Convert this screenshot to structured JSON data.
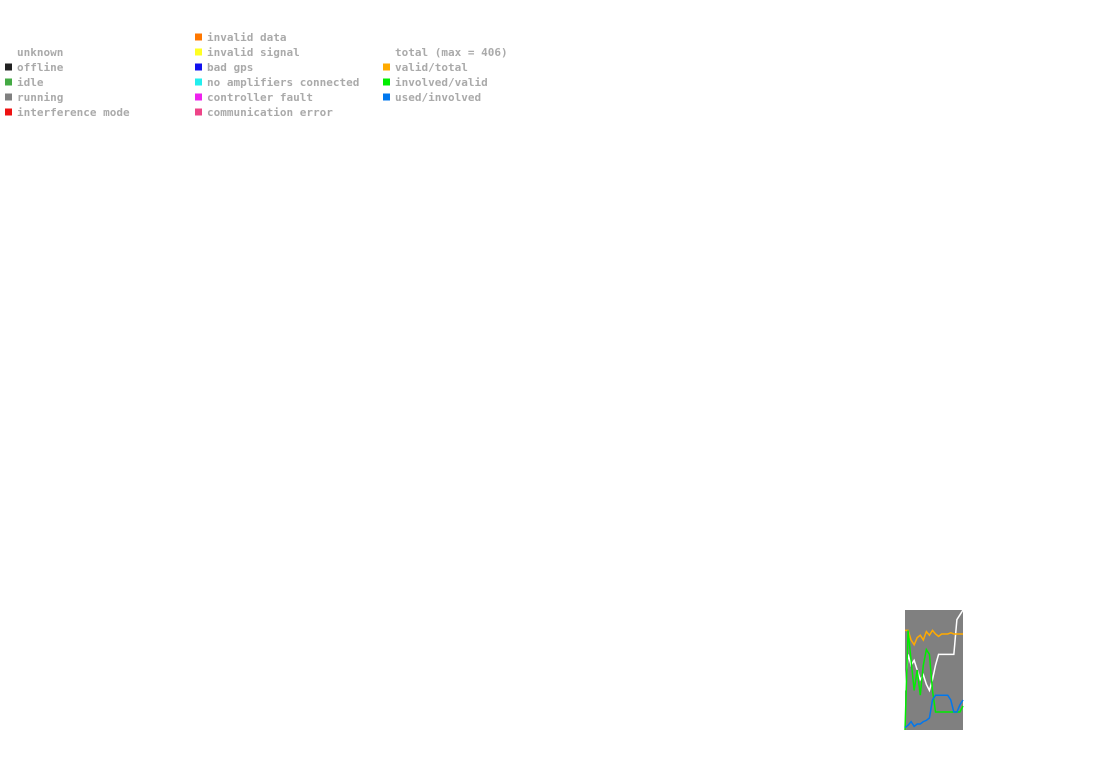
{
  "chart_data": {
    "type": "line",
    "status_legend": [
      [
        {
          "name": "unknown",
          "color": "#ffffff"
        },
        {
          "name": "offline",
          "color": "#222222"
        },
        {
          "name": "idle",
          "color": "#44aa44"
        },
        {
          "name": "running",
          "color": "#808080"
        },
        {
          "name": "interference mode",
          "color": "#ee1111"
        }
      ],
      [
        {
          "name": "invalid data",
          "color": "#ff7700"
        },
        {
          "name": "invalid signal",
          "color": "#ffff22"
        },
        {
          "name": "bad gps",
          "color": "#1111ee"
        },
        {
          "name": "no amplifiers connected",
          "color": "#22eeee"
        },
        {
          "name": "controller fault",
          "color": "#ee22ee"
        },
        {
          "name": "communication error",
          "color": "#ee4488"
        }
      ]
    ],
    "series": [
      {
        "name": "total (max = 406)",
        "color": "#ffffff",
        "values": [
          0.33,
          0.63,
          0.54,
          0.58,
          0.5,
          0.42,
          0.46,
          0.38,
          0.33,
          0.42,
          0.54,
          0.63,
          0.63,
          0.63,
          0.63,
          0.63,
          0.63,
          0.92,
          0.96,
          1.0
        ]
      },
      {
        "name": "valid/total",
        "color": "#ffaa00",
        "values": [
          0.83,
          0.83,
          0.75,
          0.71,
          0.77,
          0.79,
          0.75,
          0.82,
          0.79,
          0.83,
          0.8,
          0.78,
          0.8,
          0.8,
          0.8,
          0.81,
          0.8,
          0.8,
          0.8,
          0.8
        ]
      },
      {
        "name": "involved/valid",
        "color": "#00ee00",
        "values": [
          0,
          0.83,
          0.58,
          0.33,
          0.5,
          0.29,
          0.54,
          0.67,
          0.63,
          0.33,
          0.15,
          0.15,
          0.15,
          0.15,
          0.15,
          0.15,
          0.15,
          0.15,
          0.15,
          0.2
        ]
      },
      {
        "name": "used/involved",
        "color": "#0077ee",
        "values": [
          0.02,
          0.04,
          0.07,
          0.03,
          0.05,
          0.05,
          0.07,
          0.08,
          0.1,
          0.25,
          0.29,
          0.29,
          0.29,
          0.29,
          0.29,
          0.25,
          0.15,
          0.15,
          0.21,
          0.25
        ]
      }
    ],
    "ylim": [
      0,
      1
    ],
    "plot_background": "#808080"
  }
}
